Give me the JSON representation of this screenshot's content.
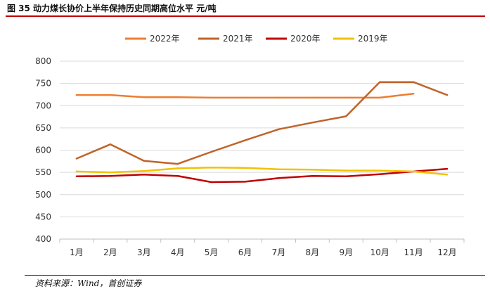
{
  "title": "图 35 动力煤长协价上半年保持历史同期高位水平  元/吨",
  "source": "资料来源：Wind，首创证券",
  "chart_data": {
    "type": "line",
    "categories": [
      "1月",
      "2月",
      "3月",
      "4月",
      "5月",
      "6月",
      "7月",
      "8月",
      "9月",
      "10月",
      "11月",
      "12月"
    ],
    "series": [
      {
        "name": "2022年",
        "color": "#ED7D31",
        "values": [
          724,
          724,
          719,
          719,
          718,
          718,
          718,
          718,
          718,
          718,
          727,
          null
        ]
      },
      {
        "name": "2021年",
        "color": "#C0632A",
        "values": [
          581,
          613,
          576,
          569,
          596,
          622,
          647,
          662,
          676,
          753,
          753,
          724
        ]
      },
      {
        "name": "2020年",
        "color": "#C00000",
        "values": [
          541,
          542,
          545,
          542,
          528,
          529,
          537,
          542,
          541,
          546,
          552,
          558
        ]
      },
      {
        "name": "2019年",
        "color": "#F2C200",
        "values": [
          552,
          550,
          553,
          559,
          561,
          560,
          557,
          556,
          554,
          554,
          552,
          545
        ]
      }
    ],
    "ylim": [
      400,
      800
    ],
    "yticks": [
      400,
      450,
      500,
      550,
      600,
      650,
      700,
      750,
      800
    ],
    "grid": true,
    "legend": "top"
  }
}
